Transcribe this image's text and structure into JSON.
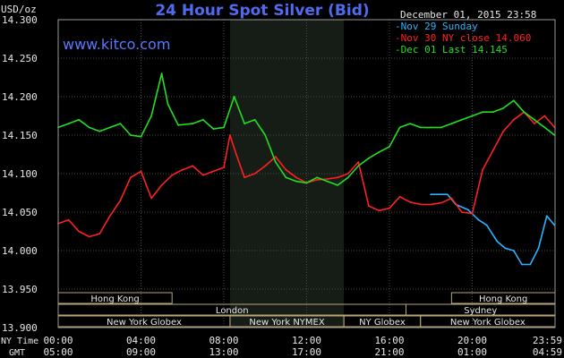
{
  "chart_data": {
    "type": "line",
    "title": "24 Hour Spot Silver (Bid)",
    "ylabel": "USD/oz",
    "ylim": [
      13.9,
      14.3
    ],
    "yticks": [
      "14.300",
      "14.250",
      "14.200",
      "14.150",
      "14.100",
      "14.050",
      "14.000",
      "13.950",
      "13.900"
    ],
    "watermark": "www.kitco.com",
    "timestamp": "December 01, 2015 23:58",
    "time_labels": {
      "ny_row_label": "NY Time",
      "gmt_row_label": "GMT",
      "ny": [
        "00:00",
        "04:00",
        "08:00",
        "12:00",
        "16:00",
        "20:00",
        "23:59"
      ],
      "gmt": [
        "05:00",
        "09:00",
        "13:00",
        "17:00",
        "21:00",
        "01:00",
        "04:59"
      ]
    },
    "legend": [
      {
        "text": "Nov 29 Sunday",
        "color": "#28b4ff"
      },
      {
        "text": "Nov 30 NY close 14.060",
        "color": "#ff2020"
      },
      {
        "text": "Dec 01 Last 14.145",
        "color": "#20e020"
      }
    ],
    "markets": {
      "row1": [
        "Hong Kong",
        "Hong Kong"
      ],
      "row2": [
        "London",
        "Sydney"
      ],
      "row3": [
        "New York Globex",
        "New York NYMEX",
        "NY Globex",
        "New York Globex"
      ]
    },
    "series": [
      {
        "name": "Nov 29 Sunday",
        "color": "#28b4ff",
        "x": [
          18.0,
          18.8,
          19.2,
          19.8,
          20.3,
          20.7,
          21.2,
          21.6,
          22.0,
          22.4,
          22.8,
          23.2,
          23.6,
          23.98
        ],
        "y": [
          14.073,
          14.073,
          14.06,
          14.053,
          14.04,
          14.033,
          14.012,
          14.003,
          14.0,
          13.982,
          13.982,
          14.003,
          14.045,
          14.033
        ]
      },
      {
        "name": "Nov 30 NY close 14.060",
        "color": "#ff2020",
        "x": [
          0,
          0.5,
          1.0,
          1.5,
          2.0,
          2.5,
          3.0,
          3.5,
          4.0,
          4.5,
          5.0,
          5.5,
          6.0,
          6.5,
          7.0,
          7.5,
          8.0,
          8.3,
          8.6,
          9.0,
          9.5,
          10.0,
          10.5,
          11.0,
          11.5,
          12.0,
          12.5,
          13.0,
          13.5,
          14.0,
          14.5,
          15.0,
          15.5,
          16.0,
          16.5,
          17.0,
          17.5,
          18.0,
          18.5,
          19.0,
          19.5,
          20.0,
          20.5,
          21.0,
          21.5,
          22.0,
          22.5,
          23.0,
          23.5,
          23.98
        ],
        "y": [
          14.035,
          14.04,
          14.025,
          14.018,
          14.022,
          14.045,
          14.065,
          14.095,
          14.103,
          14.068,
          14.085,
          14.098,
          14.105,
          14.11,
          14.098,
          14.103,
          14.108,
          14.15,
          14.125,
          14.095,
          14.1,
          14.11,
          14.122,
          14.105,
          14.095,
          14.088,
          14.092,
          14.093,
          14.095,
          14.1,
          14.115,
          14.058,
          14.052,
          14.055,
          14.07,
          14.063,
          14.06,
          14.06,
          14.062,
          14.068,
          14.05,
          14.048,
          14.105,
          14.13,
          14.155,
          14.17,
          14.18,
          14.165,
          14.175,
          14.16
        ]
      },
      {
        "name": "Dec 01 Last 14.145",
        "color": "#20e020",
        "x": [
          0,
          0.5,
          1.0,
          1.5,
          2.0,
          2.5,
          3.0,
          3.5,
          4.0,
          4.5,
          5.0,
          5.3,
          5.8,
          6.5,
          7.0,
          7.5,
          8.0,
          8.5,
          9.0,
          9.5,
          10.0,
          10.5,
          11.0,
          11.5,
          12.0,
          12.5,
          13.0,
          13.5,
          14.0,
          14.5,
          15.0,
          15.5,
          16.0,
          16.5,
          17.0,
          17.5,
          18.0,
          18.5,
          19.0,
          19.5,
          20.0,
          20.5,
          21.0,
          21.5,
          22.0,
          22.5,
          23.0,
          23.5,
          23.98
        ],
        "y": [
          14.16,
          14.165,
          14.17,
          14.16,
          14.155,
          14.16,
          14.165,
          14.15,
          14.148,
          14.175,
          14.23,
          14.19,
          14.163,
          14.165,
          14.17,
          14.158,
          14.16,
          14.2,
          14.165,
          14.17,
          14.15,
          14.115,
          14.095,
          14.09,
          14.088,
          14.095,
          14.09,
          14.085,
          14.095,
          14.11,
          14.12,
          14.128,
          14.135,
          14.16,
          14.165,
          14.16,
          14.16,
          14.16,
          14.165,
          14.17,
          14.175,
          14.18,
          14.18,
          14.185,
          14.195,
          14.18,
          14.17,
          14.16,
          14.15
        ]
      }
    ]
  }
}
